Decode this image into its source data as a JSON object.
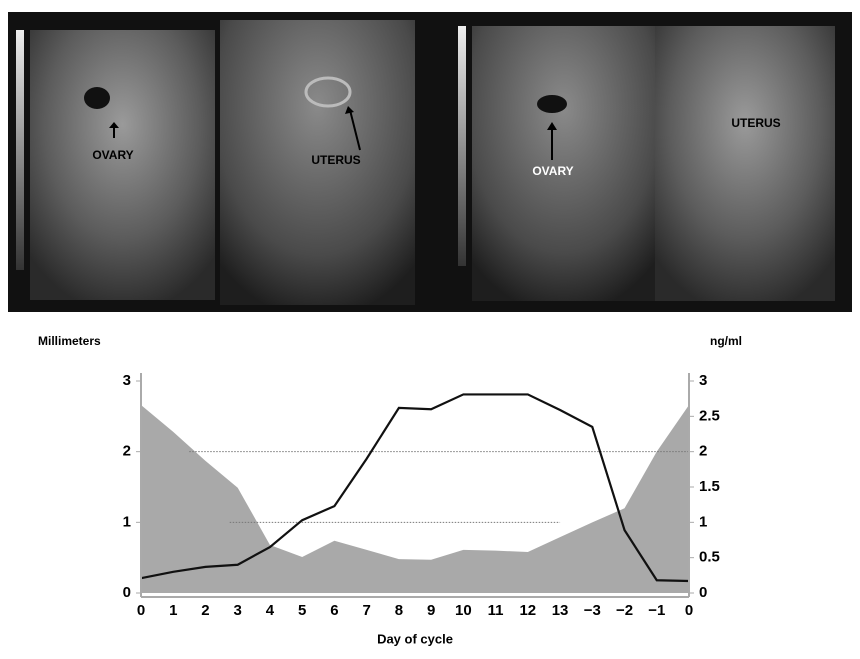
{
  "panel_labels": [
    "OVARY",
    "UTERUS",
    "OVARY",
    "UTERUS"
  ],
  "chart_data": {
    "type": "line",
    "y_label": "Millimeters",
    "y2_label": "ng/ml",
    "x_label": "Day of cycle",
    "categories": [
      "0",
      "1",
      "2",
      "3",
      "4",
      "5",
      "6",
      "7",
      "8",
      "9",
      "10",
      "11",
      "12",
      "13",
      "−3",
      "−2",
      "−1",
      "0"
    ],
    "series": [
      {
        "type": "area",
        "color": "#a9a9a9",
        "values": [
          2.66,
          2.28,
          1.87,
          1.49,
          0.68,
          0.51,
          0.74,
          0.61,
          0.48,
          0.47,
          0.61,
          0.6,
          0.58,
          0.79,
          1.0,
          1.2,
          2.0,
          2.66
        ]
      },
      {
        "type": "line",
        "color": "#111111",
        "axis": "y2",
        "values": [
          0.21,
          0.3,
          0.37,
          0.4,
          0.65,
          1.03,
          1.23,
          1.9,
          2.62,
          2.6,
          2.81,
          2.81,
          2.81,
          2.59,
          2.35,
          0.89,
          0.18,
          0.17
        ]
      }
    ],
    "hlines": [
      2,
      1
    ],
    "ylim": [
      0,
      3
    ],
    "yticks": [
      0,
      1,
      2,
      3
    ],
    "y2lim": [
      0,
      3
    ],
    "y2ticks": [
      0,
      0.5,
      1,
      1.5,
      2,
      2.5,
      3
    ]
  }
}
